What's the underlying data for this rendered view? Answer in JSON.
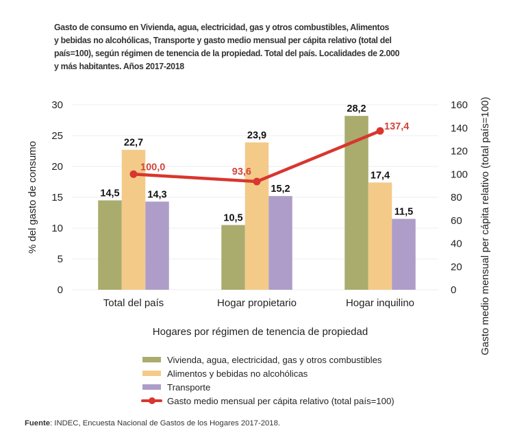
{
  "chart_data": {
    "type": "bar",
    "title": "Gasto de consumo en Vivienda, agua, electricidad, gas y otros combustibles, Alimentos\ny bebidas no alcohólicas, Transporte y gasto medio mensual per cápita relativo (total del\npaís=100), según régimen de tenencia de la propiedad. Total del país. Localidades de 2.000\ny más habitantes. Años 2017-2018",
    "xlabel": "Hogares por régimen de tenencia de propiedad",
    "ylabel": "% del gasto de consumo",
    "y2label": "Gasto medio mensual per cápita relativo (total país=100)",
    "categories": [
      "Total del país",
      "Hogar propietario",
      "Hogar inquilino"
    ],
    "ylim": [
      0,
      30
    ],
    "yticks": [
      "0",
      "5",
      "10",
      "15",
      "20",
      "25",
      "30"
    ],
    "y2lim": [
      0,
      160
    ],
    "y2ticks": [
      "0",
      "20",
      "40",
      "60",
      "80",
      "100",
      "120",
      "140",
      "160"
    ],
    "grid": true,
    "legend_position": "bottom",
    "series": [
      {
        "name": "Vivienda, agua, electricidad, gas y otros combustibles",
        "type": "bar",
        "axis": "left",
        "color": "#a9ac6c",
        "values": [
          14.5,
          10.5,
          28.2
        ],
        "labels": [
          "14,5",
          "10,5",
          "28,2"
        ]
      },
      {
        "name": "Alimentos y bebidas no alcohólicas",
        "type": "bar",
        "axis": "left",
        "color": "#f4ca89",
        "values": [
          22.7,
          23.9,
          17.4
        ],
        "labels": [
          "22,7",
          "23,9",
          "17,4"
        ]
      },
      {
        "name": "Transporte",
        "type": "bar",
        "axis": "left",
        "color": "#ae9dc8",
        "values": [
          14.3,
          15.2,
          11.5
        ],
        "labels": [
          "14,3",
          "15,2",
          "11,5"
        ]
      },
      {
        "name": "Gasto medio mensual per cápita relativo (total país=100)",
        "type": "line",
        "axis": "right",
        "color": "#d8362e",
        "values": [
          100.0,
          93.6,
          137.4
        ],
        "labels": [
          "100,0",
          "93,6",
          "137,4"
        ]
      }
    ]
  },
  "source": {
    "label": "Fuente",
    "text": ": INDEC, Encuesta Nacional de Gastos de los Hogares 2017-2018."
  }
}
